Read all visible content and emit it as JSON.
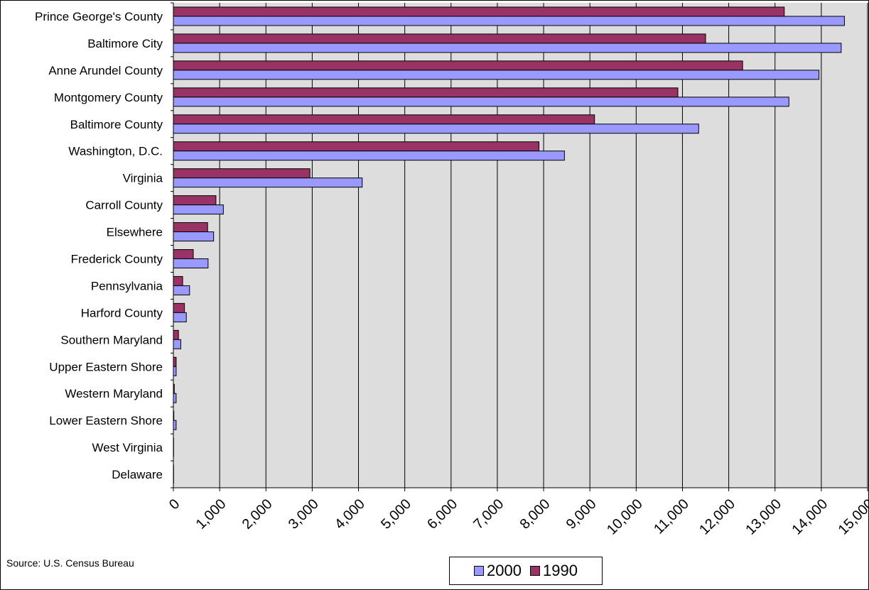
{
  "chart_data": {
    "type": "bar",
    "orientation": "horizontal",
    "title": "",
    "xlabel": "",
    "ylabel": "",
    "categories": [
      "Prince George's County",
      "Baltimore City",
      "Anne Arundel County",
      "Montgomery County",
      "Baltimore County",
      "Washington, D.C.",
      "Virginia",
      "Carroll County",
      "Elsewhere",
      "Frederick County",
      "Pennsylvania",
      "Harford County",
      "Southern Maryland",
      "Upper Eastern Shore",
      "Western Maryland",
      "Lower Eastern Shore",
      "West Virginia",
      "Delaware"
    ],
    "series": [
      {
        "name": "1990",
        "color": "#993366",
        "values": [
          13200,
          11500,
          12300,
          10900,
          9100,
          7900,
          2950,
          920,
          740,
          430,
          200,
          240,
          110,
          60,
          20,
          10,
          5,
          5
        ]
      },
      {
        "name": "2000",
        "color": "#9999ff",
        "values": [
          14500,
          14430,
          13950,
          13300,
          11350,
          8450,
          4080,
          1080,
          870,
          750,
          350,
          280,
          160,
          60,
          60,
          60,
          5,
          5
        ]
      }
    ],
    "xlim": [
      0,
      15000
    ],
    "xticks": [
      "0",
      "1,000",
      "2,000",
      "3,000",
      "4,000",
      "5,000",
      "6,000",
      "7,000",
      "8,000",
      "9,000",
      "10,000",
      "11,000",
      "12,000",
      "13,000",
      "14,000",
      "15,000"
    ],
    "grid": true,
    "plot_background": "#dddddd",
    "legend_position": "bottom",
    "source_note": "Source: U.S. Census Bureau"
  },
  "legend": {
    "items": [
      {
        "label": "2000",
        "color": "#9999ff"
      },
      {
        "label": "1990",
        "color": "#993366"
      }
    ]
  }
}
